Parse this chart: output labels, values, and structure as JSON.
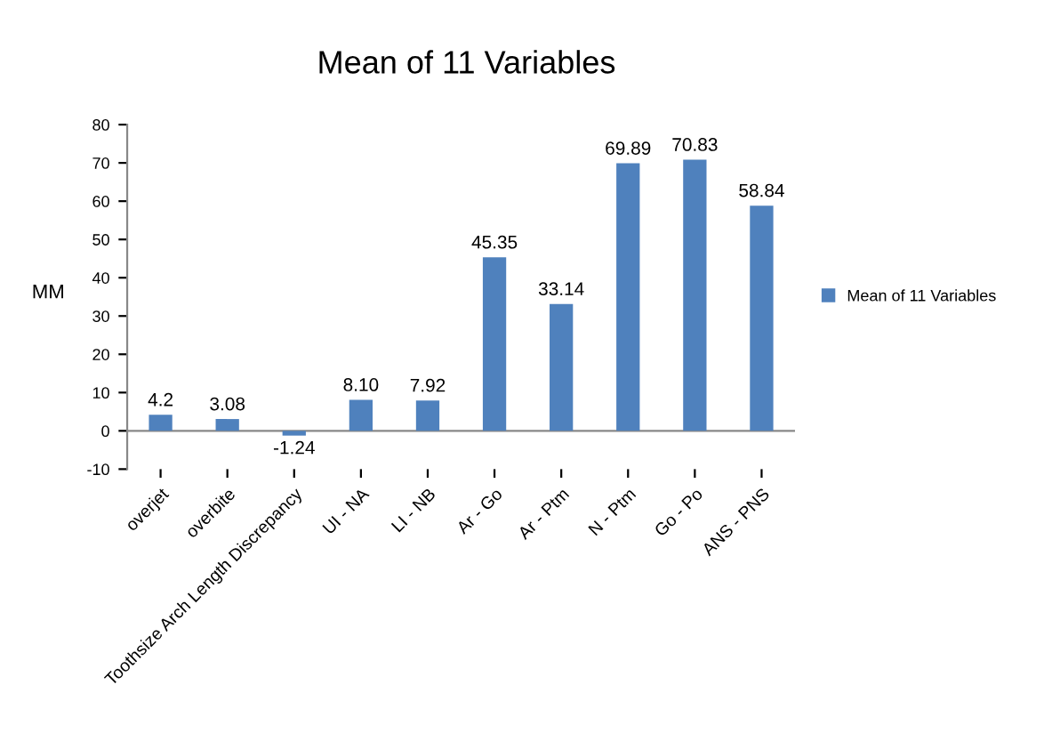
{
  "chart_data": {
    "type": "bar",
    "title": "Mean of 11 Variables",
    "ylabel": "MM",
    "categories": [
      "overjet",
      "overbite",
      "Toothsize Arch Length Discrepancy",
      "UI - NA",
      "LI - NB",
      "Ar - Go",
      "Ar - Ptm",
      "N - Ptm",
      "Go - Po",
      "ANS - PNS"
    ],
    "series": [
      {
        "name": "Mean of 11 Variables",
        "color": "#4f81bd",
        "values": [
          4.2,
          3.08,
          -1.24,
          8.1,
          7.92,
          45.35,
          33.14,
          69.89,
          70.83,
          58.84
        ],
        "value_labels": [
          "4.2",
          "3.08",
          "-1.24",
          "8.10",
          "7.92",
          "45.35",
          "33.14",
          "69.89",
          "70.83",
          "58.84"
        ]
      }
    ],
    "ylim": [
      -10,
      80
    ],
    "yticks": [
      -10,
      0,
      10,
      20,
      30,
      40,
      50,
      60,
      70,
      80
    ],
    "legend": "right"
  }
}
